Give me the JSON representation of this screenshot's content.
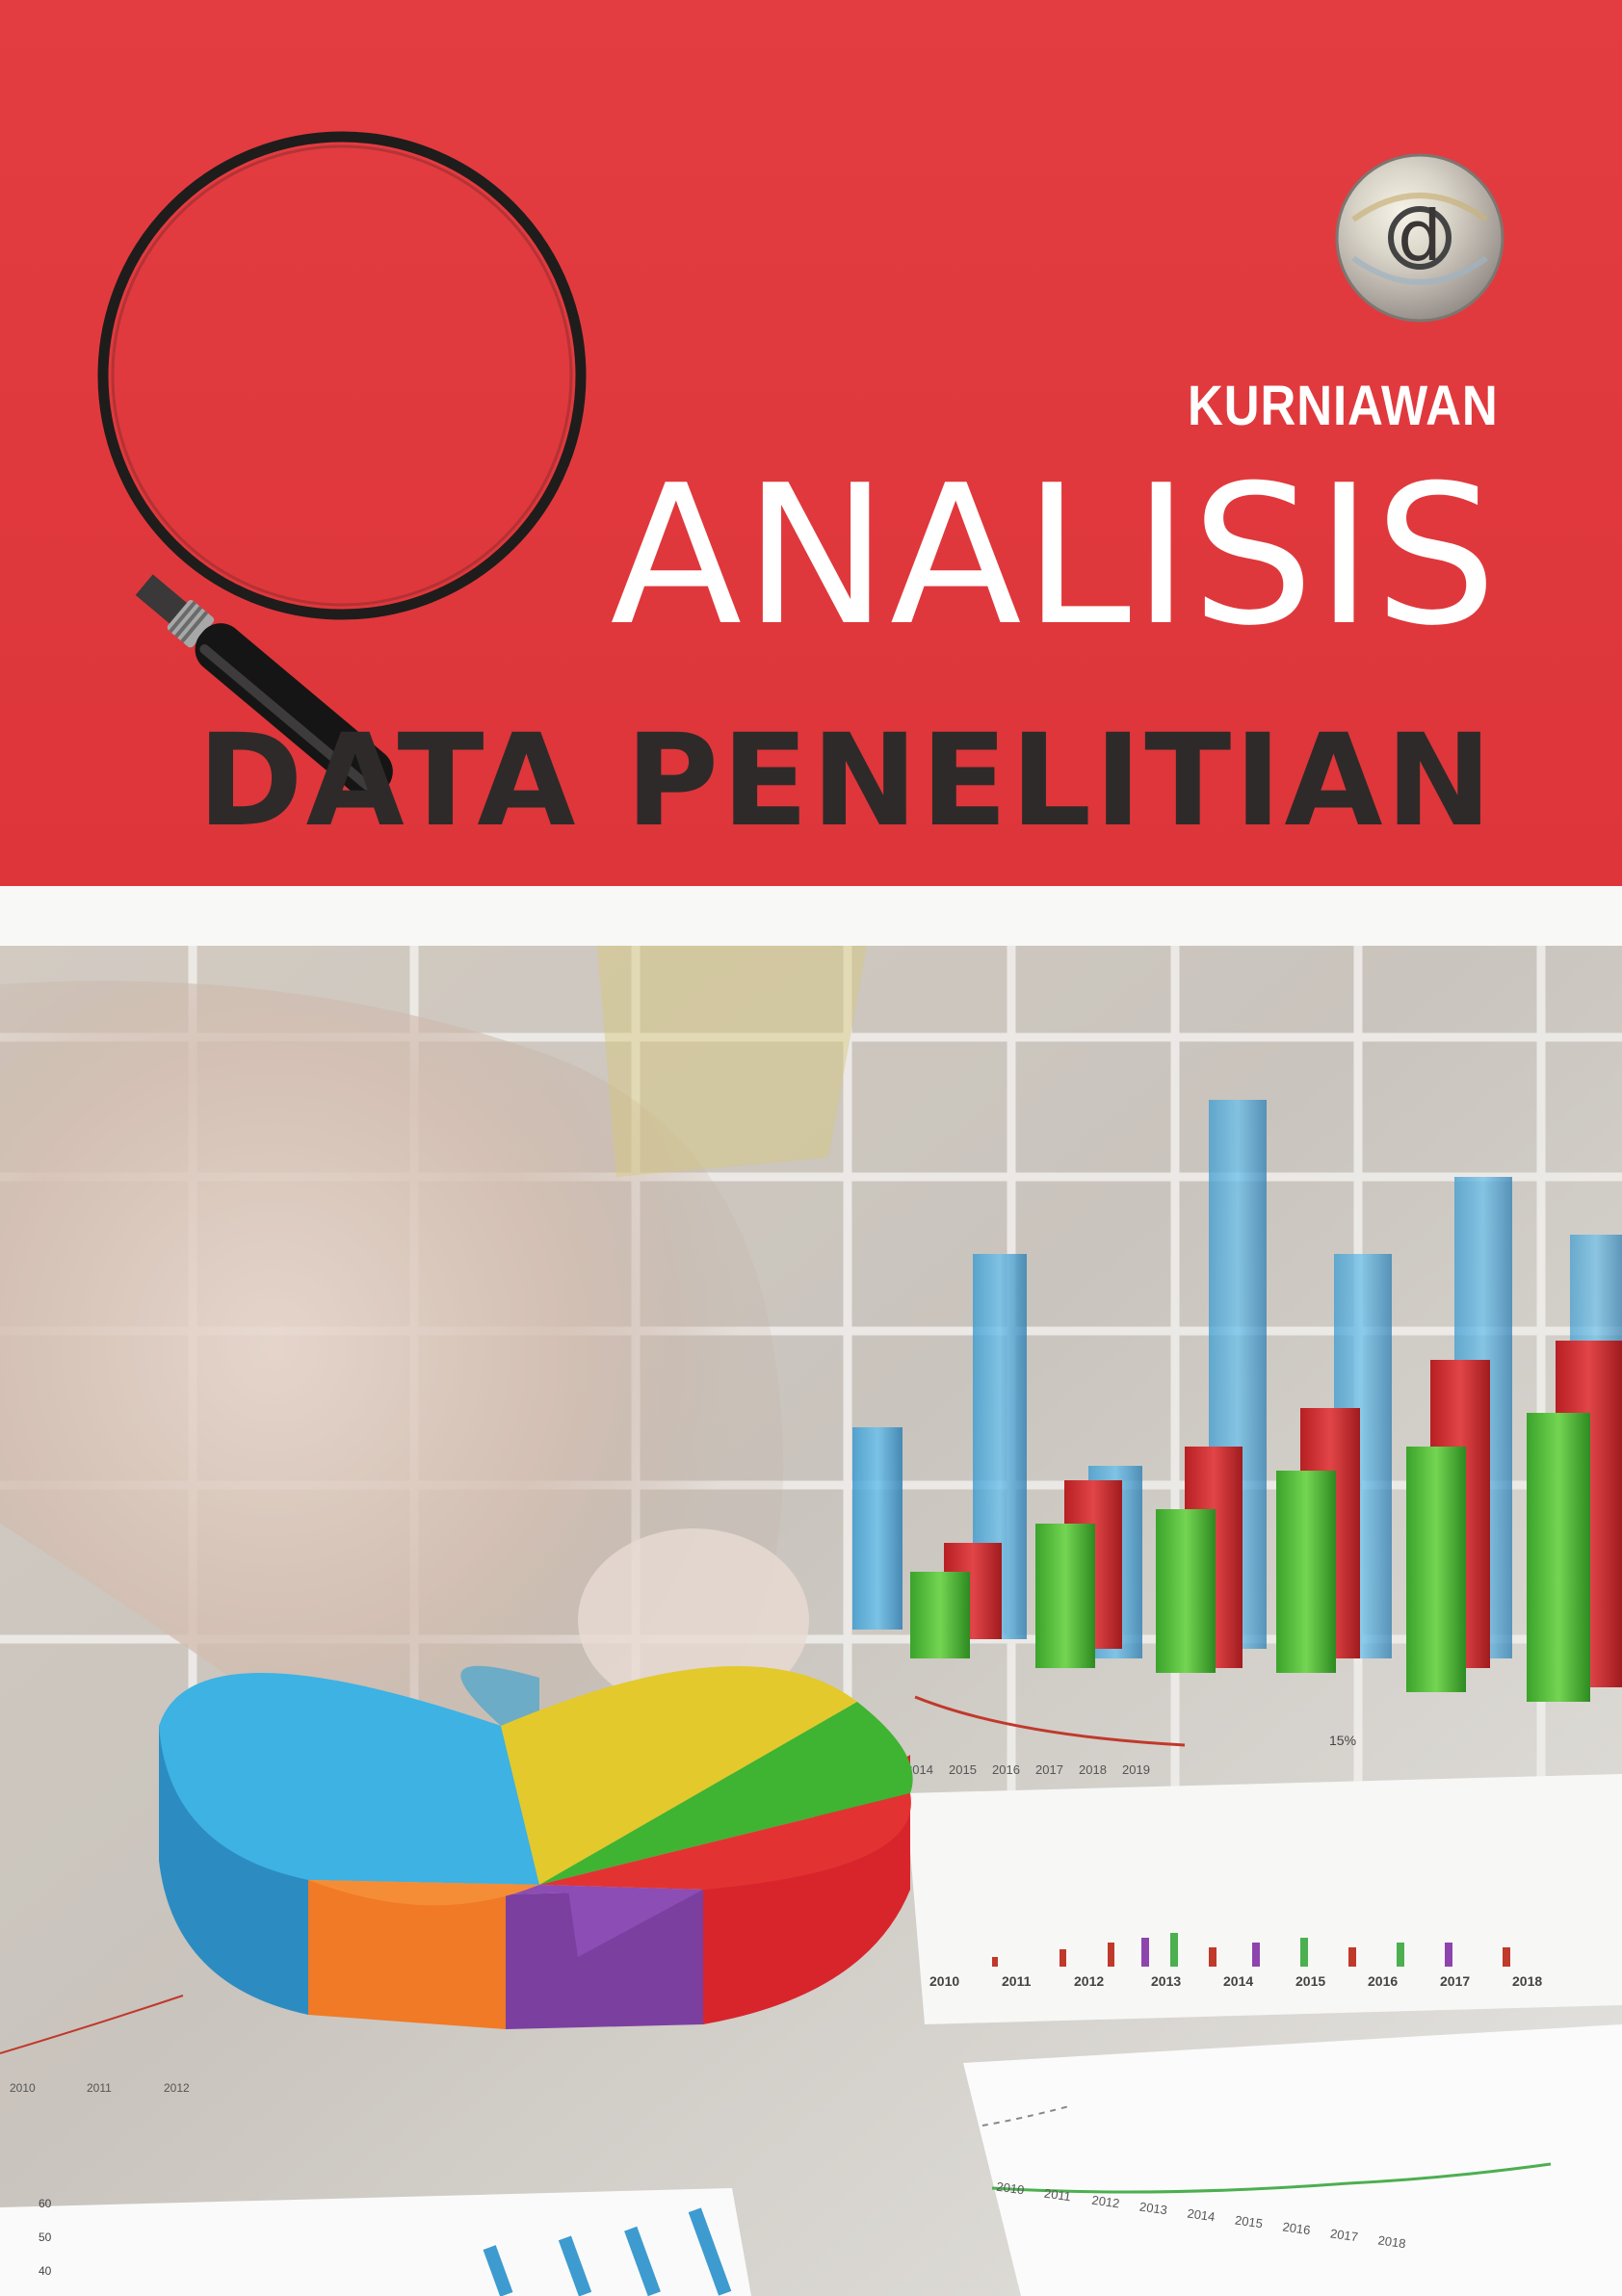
{
  "cover": {
    "author": "KURNIAWAN",
    "title_line1": "ANALISIS",
    "title_line2": "DATA PENELITIAN",
    "publisher_logo_letter": "d",
    "colors": {
      "red": "#e23b3f",
      "dark_title": "#2e2a29",
      "white": "#ffffff"
    },
    "icons": [
      "magnifying-glass-icon",
      "publisher-logo"
    ]
  },
  "photo": {
    "back_chart_years": [
      "2014",
      "2015",
      "2016",
      "2017",
      "2018",
      "2019"
    ],
    "mid_chart_years": [
      "2010",
      "2011",
      "2012",
      "2013",
      "2014",
      "2015",
      "2016",
      "2017",
      "2018"
    ],
    "left_chart_years": [
      "2010",
      "2011",
      "2012"
    ],
    "bottom_chart_years": [
      "2010",
      "2011",
      "2012",
      "2013",
      "2014",
      "2015",
      "2016",
      "2017",
      "2018"
    ],
    "percent_label": "15%",
    "axis_ticks": [
      "60",
      "50",
      "40"
    ]
  }
}
